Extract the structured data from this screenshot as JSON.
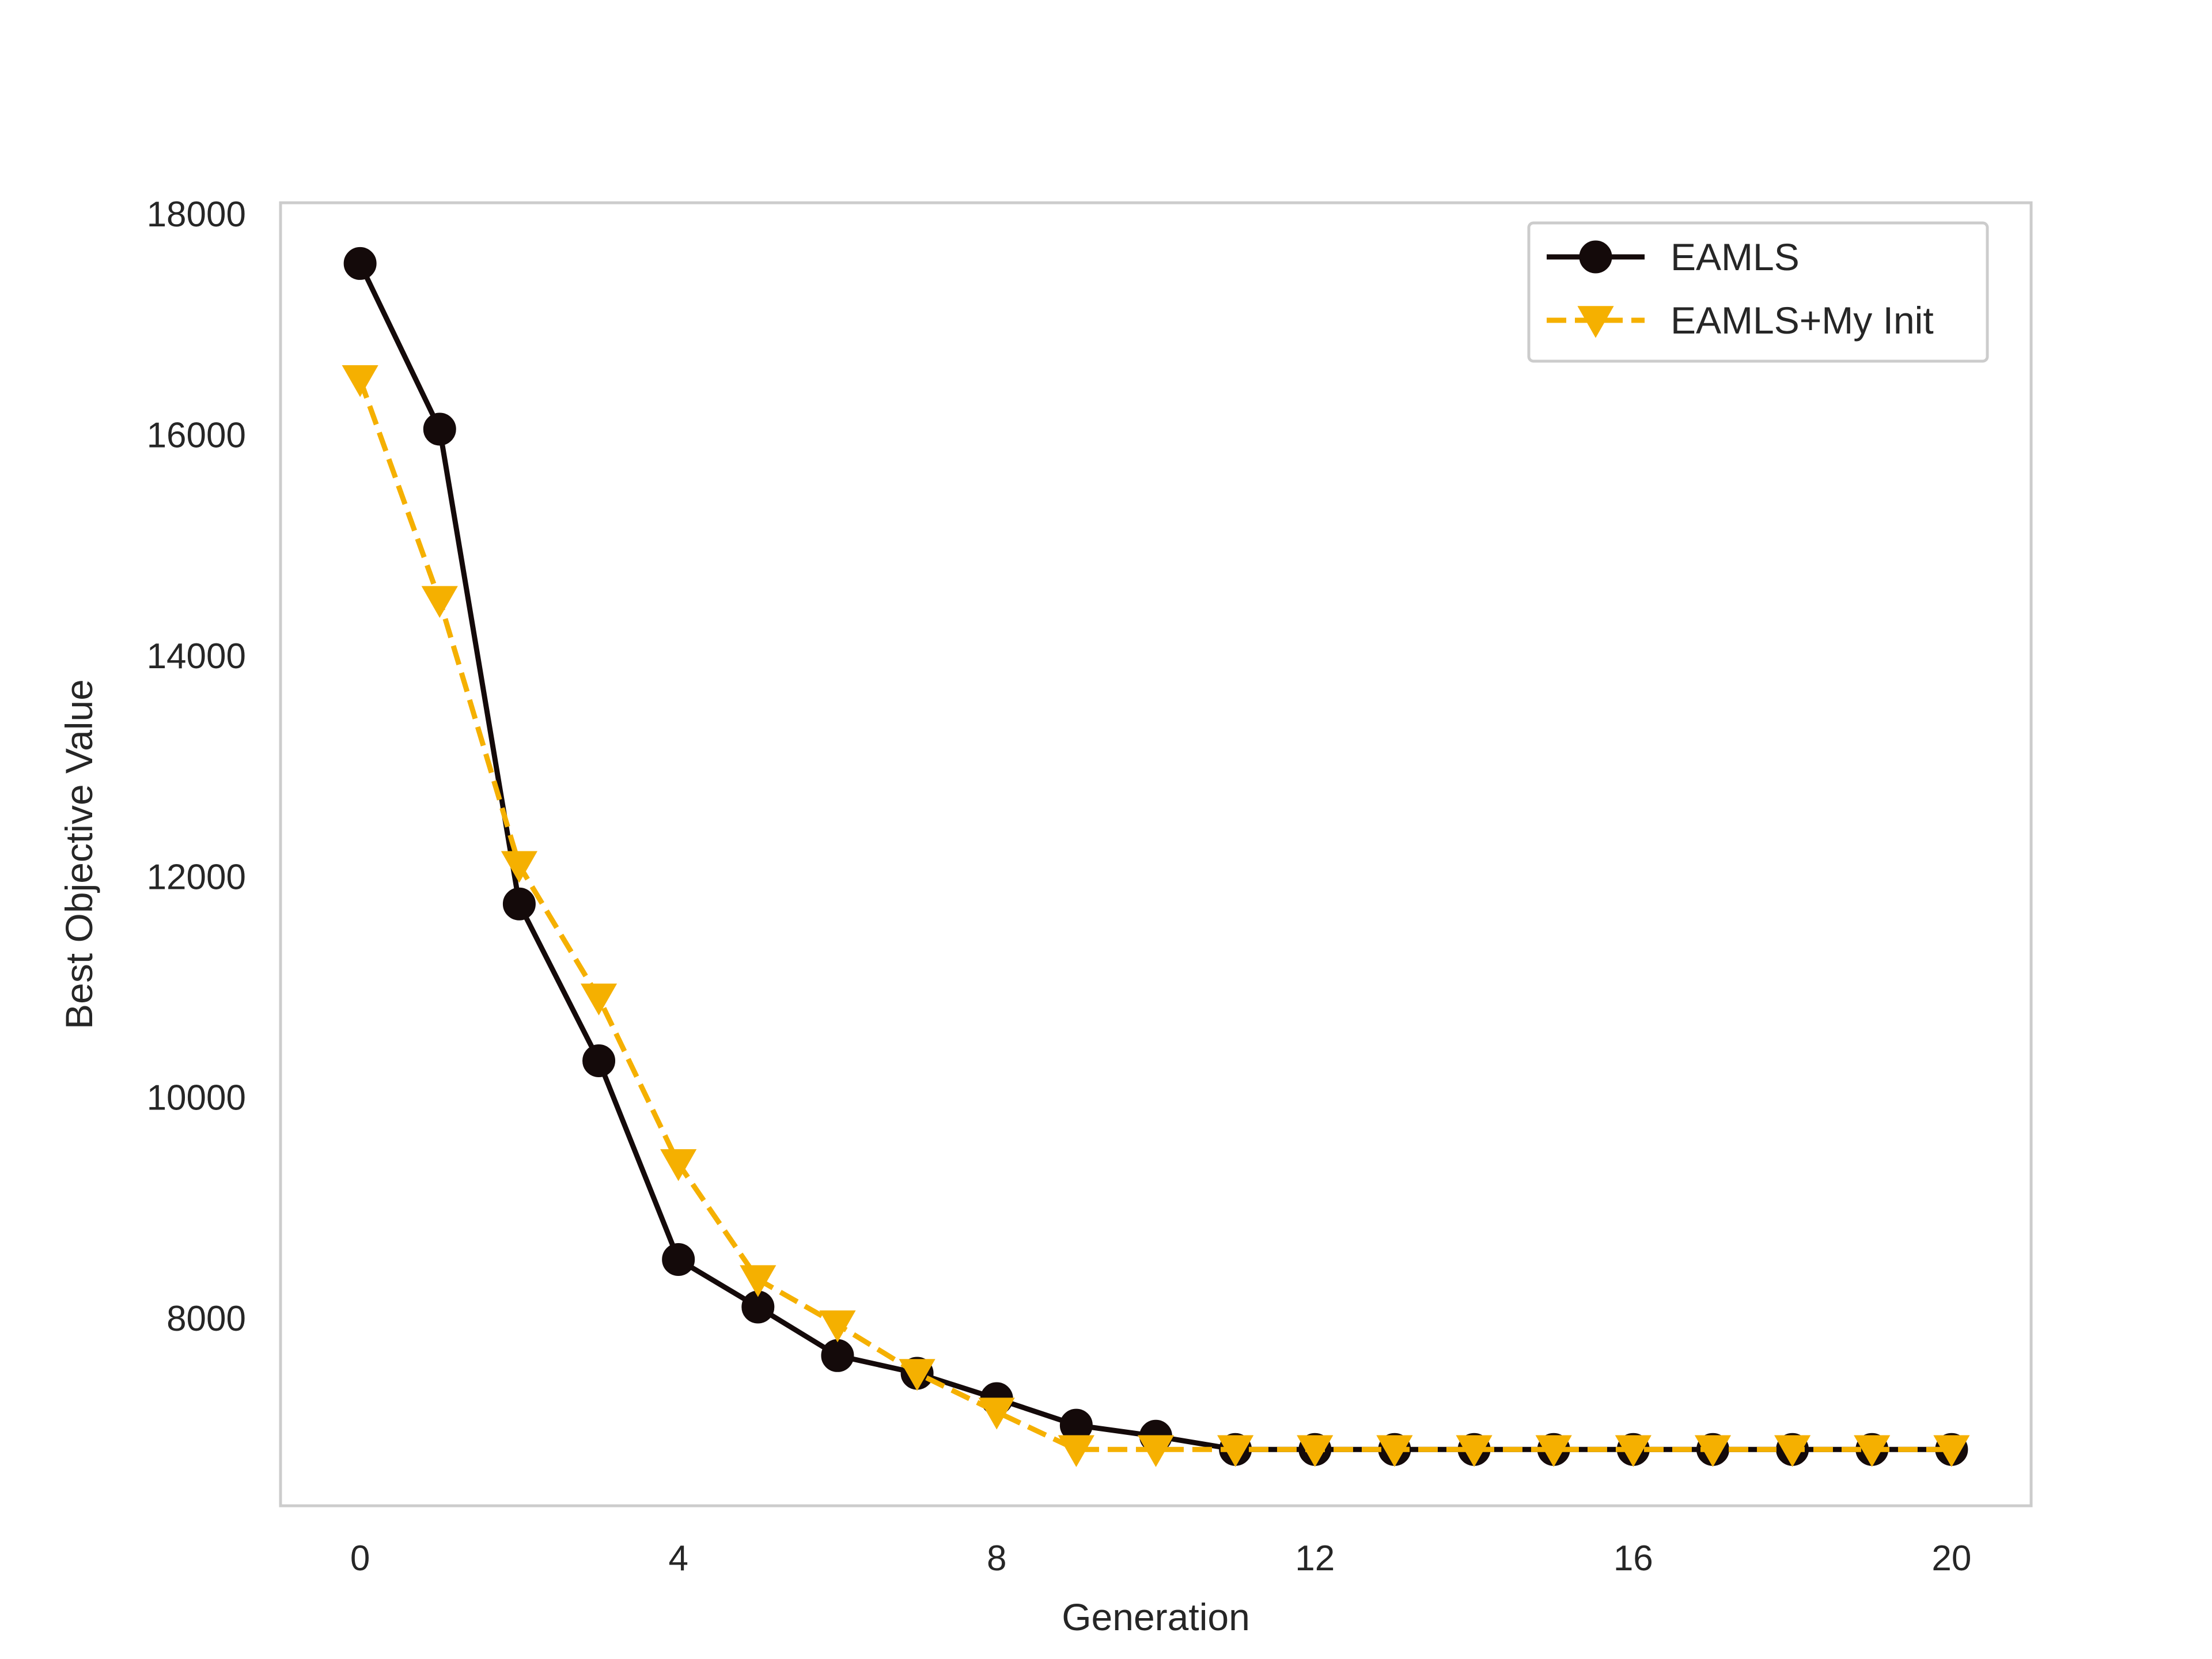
{
  "chart_data": {
    "type": "line",
    "title": "",
    "xlabel": "Generation",
    "ylabel": "Best Objective Value",
    "xlim": [
      -1,
      21
    ],
    "ylim": [
      6300,
      18100
    ],
    "xticks": [
      0,
      4,
      8,
      12,
      16,
      20
    ],
    "yticks": [
      8000,
      10000,
      12000,
      14000,
      16000,
      18000
    ],
    "xtick_labels": [
      "0",
      "4",
      "8",
      "12",
      "16",
      "20"
    ],
    "ytick_labels": [
      "8000",
      "10000",
      "12000",
      "14000",
      "16000",
      "18000"
    ],
    "grid": false,
    "legend_position": "upper right",
    "x": [
      0,
      1,
      2,
      3,
      4,
      5,
      6,
      7,
      8,
      9,
      10,
      11,
      12,
      13,
      14,
      15,
      16,
      17,
      18,
      19,
      20
    ],
    "series": [
      {
        "name": "EAMLS",
        "color": "#140a0a",
        "marker": "circle",
        "line_style": "solid",
        "values": [
          17550,
          16050,
          11750,
          10330,
          8530,
          8100,
          7660,
          7500,
          7270,
          7030,
          6930,
          6810,
          6810,
          6810,
          6810,
          6810,
          6810,
          6810,
          6810,
          6810,
          6810
        ]
      },
      {
        "name": "EAMLS+My Init",
        "color": "#f5b000",
        "marker": "triangle-down",
        "line_style": "dashed",
        "values": [
          16500,
          14500,
          12100,
          10900,
          9400,
          8350,
          7940,
          7500,
          7150,
          6810,
          6810,
          6810,
          6810,
          6810,
          6810,
          6810,
          6810,
          6810,
          6810,
          6810,
          6810
        ]
      }
    ]
  }
}
